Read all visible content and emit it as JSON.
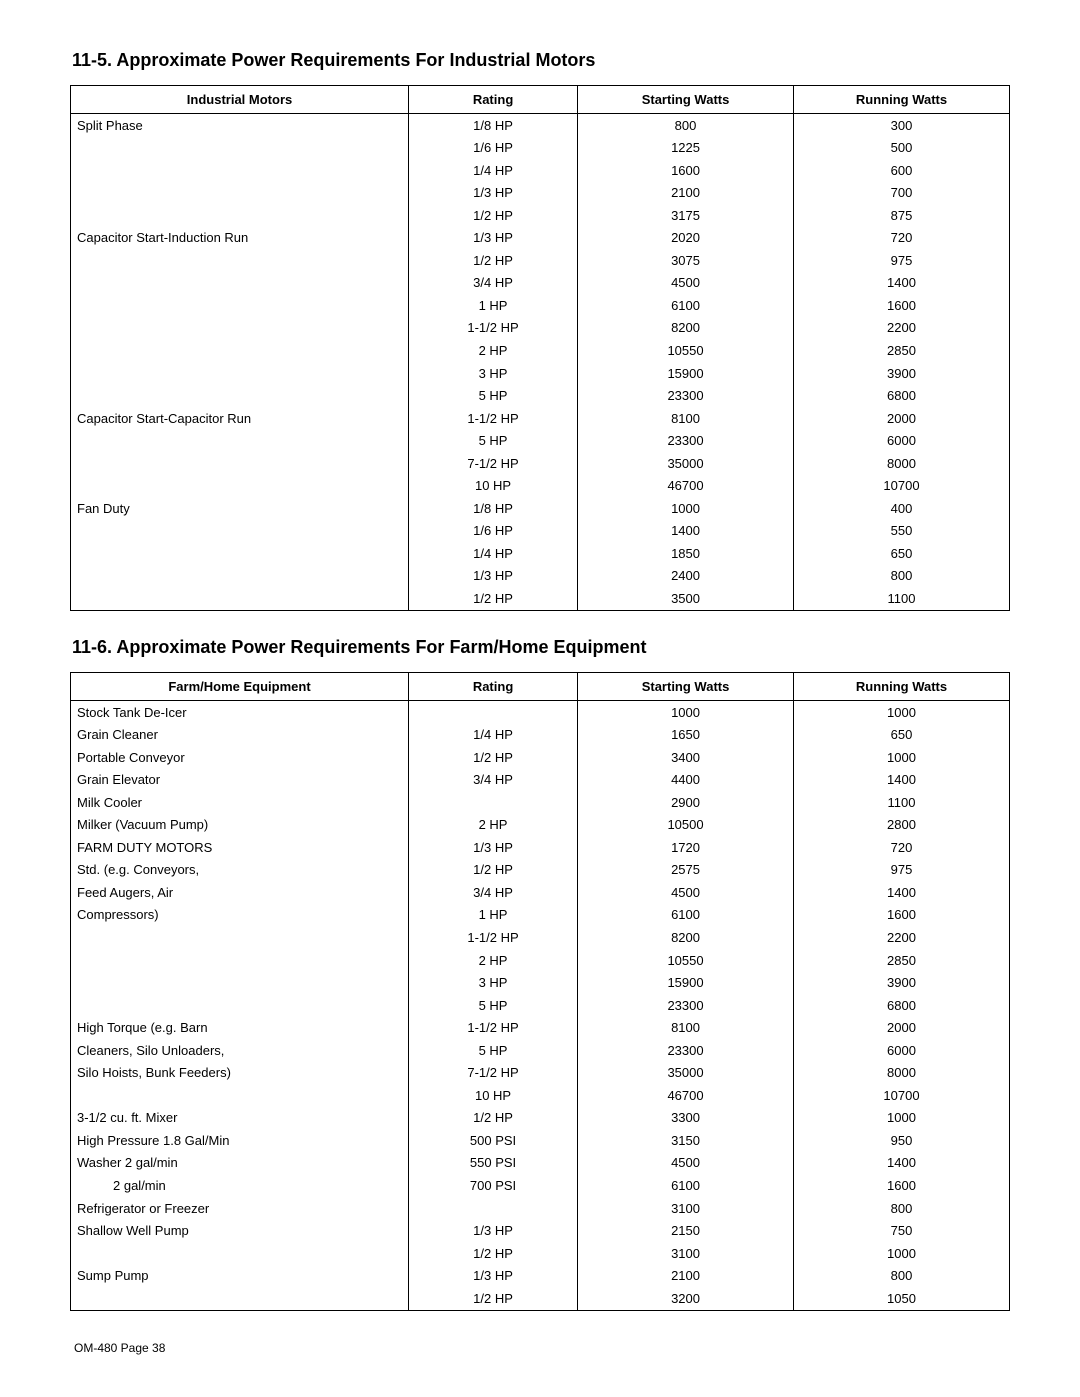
{
  "section1": {
    "title": "11-5.  Approximate Power Requirements For Industrial Motors",
    "headers": [
      "Industrial Motors",
      "Rating",
      "Starting Watts",
      "Running Watts"
    ],
    "rows": [
      {
        "label": "Split Phase",
        "rating": "1/8 HP",
        "start": "800",
        "run": "300"
      },
      {
        "label": "",
        "rating": "1/6 HP",
        "start": "1225",
        "run": "500"
      },
      {
        "label": "",
        "rating": "1/4 HP",
        "start": "1600",
        "run": "600"
      },
      {
        "label": "",
        "rating": "1/3 HP",
        "start": "2100",
        "run": "700"
      },
      {
        "label": "",
        "rating": "1/2 HP",
        "start": "3175",
        "run": "875"
      },
      {
        "label": "Capacitor Start-Induction Run",
        "rating": "1/3 HP",
        "start": "2020",
        "run": "720"
      },
      {
        "label": "",
        "rating": "1/2 HP",
        "start": "3075",
        "run": "975"
      },
      {
        "label": "",
        "rating": "3/4 HP",
        "start": "4500",
        "run": "1400"
      },
      {
        "label": "",
        "rating": "1 HP",
        "start": "6100",
        "run": "1600"
      },
      {
        "label": "",
        "rating": "1-1/2 HP",
        "start": "8200",
        "run": "2200"
      },
      {
        "label": "",
        "rating": "2 HP",
        "start": "10550",
        "run": "2850"
      },
      {
        "label": "",
        "rating": "3 HP",
        "start": "15900",
        "run": "3900"
      },
      {
        "label": "",
        "rating": "5 HP",
        "start": "23300",
        "run": "6800"
      },
      {
        "label": "Capacitor Start-Capacitor Run",
        "rating": "1-1/2 HP",
        "start": "8100",
        "run": "2000"
      },
      {
        "label": "",
        "rating": "5 HP",
        "start": "23300",
        "run": "6000"
      },
      {
        "label": "",
        "rating": "7-1/2 HP",
        "start": "35000",
        "run": "8000"
      },
      {
        "label": "",
        "rating": "10 HP",
        "start": "46700",
        "run": "10700"
      },
      {
        "label": "Fan Duty",
        "rating": "1/8 HP",
        "start": "1000",
        "run": "400"
      },
      {
        "label": "",
        "rating": "1/6 HP",
        "start": "1400",
        "run": "550"
      },
      {
        "label": "",
        "rating": "1/4 HP",
        "start": "1850",
        "run": "650"
      },
      {
        "label": "",
        "rating": "1/3 HP",
        "start": "2400",
        "run": "800"
      },
      {
        "label": "",
        "rating": "1/2 HP",
        "start": "3500",
        "run": "1100"
      }
    ]
  },
  "section2": {
    "title": "11-6.  Approximate Power Requirements For Farm/Home Equipment",
    "headers": [
      "Farm/Home Equipment",
      "Rating",
      "Starting Watts",
      "Running Watts"
    ],
    "rows": [
      {
        "label": "Stock Tank De-Icer",
        "rating": "",
        "start": "1000",
        "run": "1000"
      },
      {
        "label": "Grain Cleaner",
        "rating": "1/4 HP",
        "start": "1650",
        "run": "650"
      },
      {
        "label": "Portable Conveyor",
        "rating": "1/2 HP",
        "start": "3400",
        "run": "1000"
      },
      {
        "label": "Grain Elevator",
        "rating": "3/4 HP",
        "start": "4400",
        "run": "1400"
      },
      {
        "label": "Milk Cooler",
        "rating": "",
        "start": "2900",
        "run": "1100"
      },
      {
        "label": "Milker (Vacuum Pump)",
        "rating": "2 HP",
        "start": "10500",
        "run": "2800"
      },
      {
        "label": "FARM DUTY MOTORS",
        "rating": "1/3 HP",
        "start": "1720",
        "run": "720"
      },
      {
        "label": "Std. (e.g. Conveyors,",
        "rating": "1/2 HP",
        "start": "2575",
        "run": "975"
      },
      {
        "label": "Feed Augers, Air",
        "rating": "3/4 HP",
        "start": "4500",
        "run": "1400"
      },
      {
        "label": "Compressors)",
        "rating": "1 HP",
        "start": "6100",
        "run": "1600"
      },
      {
        "label": "",
        "rating": "1-1/2 HP",
        "start": "8200",
        "run": "2200"
      },
      {
        "label": "",
        "rating": "2 HP",
        "start": "10550",
        "run": "2850"
      },
      {
        "label": "",
        "rating": "3 HP",
        "start": "15900",
        "run": "3900"
      },
      {
        "label": "",
        "rating": "5 HP",
        "start": "23300",
        "run": "6800"
      },
      {
        "label": "High Torque (e.g. Barn",
        "rating": "1-1/2 HP",
        "start": "8100",
        "run": "2000"
      },
      {
        "label": "Cleaners, Silo Unloaders,",
        "rating": "5 HP",
        "start": "23300",
        "run": "6000"
      },
      {
        "label": "Silo Hoists, Bunk Feeders)",
        "rating": "7-1/2 HP",
        "start": "35000",
        "run": "8000"
      },
      {
        "label": "",
        "rating": "10 HP",
        "start": "46700",
        "run": "10700"
      },
      {
        "label": "3-1/2 cu. ft. Mixer",
        "rating": "1/2 HP",
        "start": "3300",
        "run": "1000"
      },
      {
        "label": "High Pressure 1.8 Gal/Min",
        "rating": "500 PSI",
        "start": "3150",
        "run": "950"
      },
      {
        "label": "Washer 2 gal/min",
        "rating": "550 PSI",
        "start": "4500",
        "run": "1400"
      },
      {
        "label": "2 gal/min",
        "indent": true,
        "rating": "700 PSI",
        "start": "6100",
        "run": "1600"
      },
      {
        "label": "Refrigerator or Freezer",
        "rating": "",
        "start": "3100",
        "run": "800"
      },
      {
        "label": "Shallow Well Pump",
        "rating": "1/3 HP",
        "start": "2150",
        "run": "750"
      },
      {
        "label": "",
        "rating": "1/2 HP",
        "start": "3100",
        "run": "1000"
      },
      {
        "label": "Sump Pump",
        "rating": "1/3 HP",
        "start": "2100",
        "run": "800"
      },
      {
        "label": "",
        "rating": "1/2 HP",
        "start": "3200",
        "run": "1050"
      }
    ]
  },
  "footer": "OM-480 Page 38"
}
